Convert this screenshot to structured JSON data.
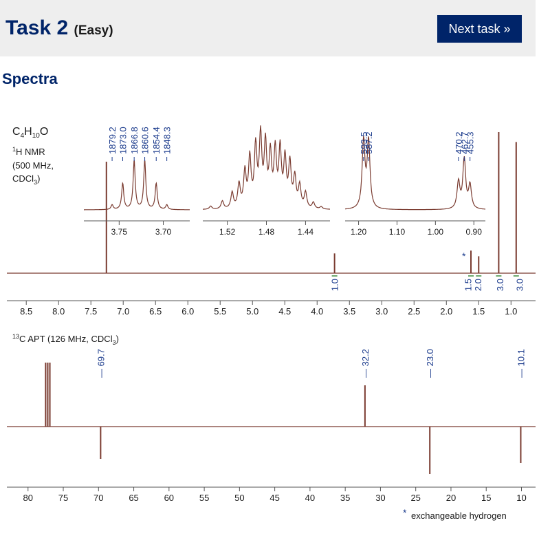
{
  "header": {
    "task_title": "Task 2",
    "difficulty": "(Easy)",
    "next_button": "Next task »"
  },
  "section_title": "Spectra",
  "colors": {
    "navy": "#002469",
    "trace": "#7a3b30",
    "label_blue": "#1a3a8c",
    "header_bg": "#eeeeee",
    "integral": "#3a8a3a"
  },
  "chart_data": [
    {
      "type": "line",
      "title": "C₄H₁₀O",
      "title_parts": [
        "C",
        "4",
        "H",
        "10",
        "O"
      ],
      "nucleus_label": [
        "1",
        "H NMR"
      ],
      "instrument": "(500 MHz,",
      "solvent_parts": [
        "CDCl",
        "3",
        ")"
      ],
      "xlim": [
        8.8,
        0.62
      ],
      "xticks": [
        8.5,
        8.0,
        7.5,
        7.0,
        6.5,
        6.0,
        5.5,
        5.0,
        4.5,
        4.0,
        3.5,
        3.0,
        2.5,
        2.0,
        1.5,
        1.0
      ],
      "xtick_labels": [
        "8.5",
        "8.0",
        "7.5",
        "7.0",
        "6.5",
        "6.0",
        "5.5",
        "5.0",
        "4.5",
        "4.0",
        "3.5",
        "3.0",
        "2.5",
        "2.0",
        "1.5",
        "1.0"
      ],
      "peaks": [
        {
          "ppm": 7.26,
          "height": 0.79
        },
        {
          "ppm": 3.73,
          "height": 0.14
        },
        {
          "ppm": 1.62,
          "height": 0.16
        },
        {
          "ppm": 1.5,
          "height": 0.12
        },
        {
          "ppm": 1.19,
          "height": 1.0
        },
        {
          "ppm": 0.92,
          "height": 0.93
        }
      ],
      "exchangeable_marker": {
        "ppm": 1.62,
        "label": "*"
      },
      "integrals": [
        {
          "ppm": 3.73,
          "label": "1.0"
        },
        {
          "ppm": 1.62,
          "label": "1.5"
        },
        {
          "ppm": 1.5,
          "label": "2.0"
        },
        {
          "ppm": 1.19,
          "label": "3.0"
        },
        {
          "ppm": 0.92,
          "label": "3.0"
        }
      ],
      "insets": [
        {
          "xlim": [
            3.79,
            3.67
          ],
          "xticks": [
            3.75,
            3.7
          ],
          "xtick_labels": [
            "3.75",
            "3.70"
          ],
          "peaks": [
            {
              "ppm": 3.758,
              "height": 0.06
            },
            {
              "ppm": 3.746,
              "height": 0.33
            },
            {
              "ppm": 3.733,
              "height": 0.62
            },
            {
              "ppm": 3.721,
              "height": 0.62
            },
            {
              "ppm": 3.708,
              "height": 0.33
            },
            {
              "ppm": 3.696,
              "height": 0.06
            }
          ],
          "peak_labels": [
            {
              "ppm": 3.758,
              "label": "1879.2"
            },
            {
              "ppm": 3.746,
              "label": "1873.0"
            },
            {
              "ppm": 3.733,
              "label": "1866.8"
            },
            {
              "ppm": 3.721,
              "label": "1860.6"
            },
            {
              "ppm": 3.708,
              "label": "1854.4"
            },
            {
              "ppm": 3.696,
              "label": "1848.3"
            }
          ]
        },
        {
          "xlim": [
            1.545,
            1.415
          ],
          "xticks": [
            1.52,
            1.48,
            1.44
          ],
          "xtick_labels": [
            "1.52",
            "1.48",
            "1.44"
          ],
          "peaks": [
            {
              "ppm": 1.537,
              "height": 0.04
            },
            {
              "ppm": 1.525,
              "height": 0.1
            },
            {
              "ppm": 1.515,
              "height": 0.2
            },
            {
              "ppm": 1.508,
              "height": 0.3
            },
            {
              "ppm": 1.502,
              "height": 0.45
            },
            {
              "ppm": 1.497,
              "height": 0.62
            },
            {
              "ppm": 1.491,
              "height": 0.75
            },
            {
              "ppm": 1.486,
              "height": 0.88
            },
            {
              "ppm": 1.481,
              "height": 0.78
            },
            {
              "ppm": 1.476,
              "height": 0.65
            },
            {
              "ppm": 1.471,
              "height": 0.7
            },
            {
              "ppm": 1.466,
              "height": 0.72
            },
            {
              "ppm": 1.461,
              "height": 0.6
            },
            {
              "ppm": 1.456,
              "height": 0.55
            },
            {
              "ppm": 1.451,
              "height": 0.38
            },
            {
              "ppm": 1.446,
              "height": 0.28
            },
            {
              "ppm": 1.44,
              "height": 0.2
            },
            {
              "ppm": 1.432,
              "height": 0.08
            },
            {
              "ppm": 1.424,
              "height": 0.03
            }
          ],
          "peak_labels": []
        },
        {
          "xlim": [
            1.235,
            0.87
          ],
          "xticks": [
            1.2,
            1.1,
            1.0,
            0.9
          ],
          "xtick_labels": [
            "1.20",
            "1.10",
            "1.00",
            "0.90"
          ],
          "peaks": [
            {
              "ppm": 1.187,
              "height": 0.85
            },
            {
              "ppm": 1.174,
              "height": 0.85
            },
            {
              "ppm": 0.94,
              "height": 0.34
            },
            {
              "ppm": 0.925,
              "height": 0.63
            },
            {
              "ppm": 0.91,
              "height": 0.3
            }
          ],
          "peak_labels": [
            {
              "ppm": 1.187,
              "label": "593.5"
            },
            {
              "ppm": 1.174,
              "label": "587.2"
            },
            {
              "ppm": 0.94,
              "label": "470.2"
            },
            {
              "ppm": 0.925,
              "label": "462.7"
            },
            {
              "ppm": 0.91,
              "label": "455.3"
            }
          ]
        }
      ]
    },
    {
      "type": "line",
      "title_parts": [
        "13",
        "C APT (126 MHz, CDCl",
        "3",
        ")"
      ],
      "xlim": [
        83.0,
        8.0
      ],
      "xticks": [
        80,
        75,
        70,
        65,
        60,
        55,
        50,
        45,
        40,
        35,
        30,
        25,
        20,
        15,
        10
      ],
      "xtick_labels": [
        "80",
        "75",
        "70",
        "65",
        "60",
        "55",
        "50",
        "45",
        "40",
        "35",
        "30",
        "25",
        "20",
        "15",
        "10"
      ],
      "peaks": [
        {
          "ppm": 77.5,
          "height": 0.93
        },
        {
          "ppm": 77.2,
          "height": 0.93
        },
        {
          "ppm": 76.9,
          "height": 0.93
        },
        {
          "ppm": 69.7,
          "height": -0.47
        },
        {
          "ppm": 32.2,
          "height": 0.6
        },
        {
          "ppm": 23.0,
          "height": -0.69
        },
        {
          "ppm": 10.1,
          "height": -0.53
        }
      ],
      "peak_labels": [
        {
          "ppm": 69.7,
          "label": "69.7"
        },
        {
          "ppm": 32.2,
          "label": "32.2"
        },
        {
          "ppm": 23.0,
          "label": "23.0"
        },
        {
          "ppm": 10.1,
          "label": "10.1"
        }
      ]
    }
  ],
  "footnote": {
    "marker": "*",
    "text": "exchangeable hydrogen"
  }
}
